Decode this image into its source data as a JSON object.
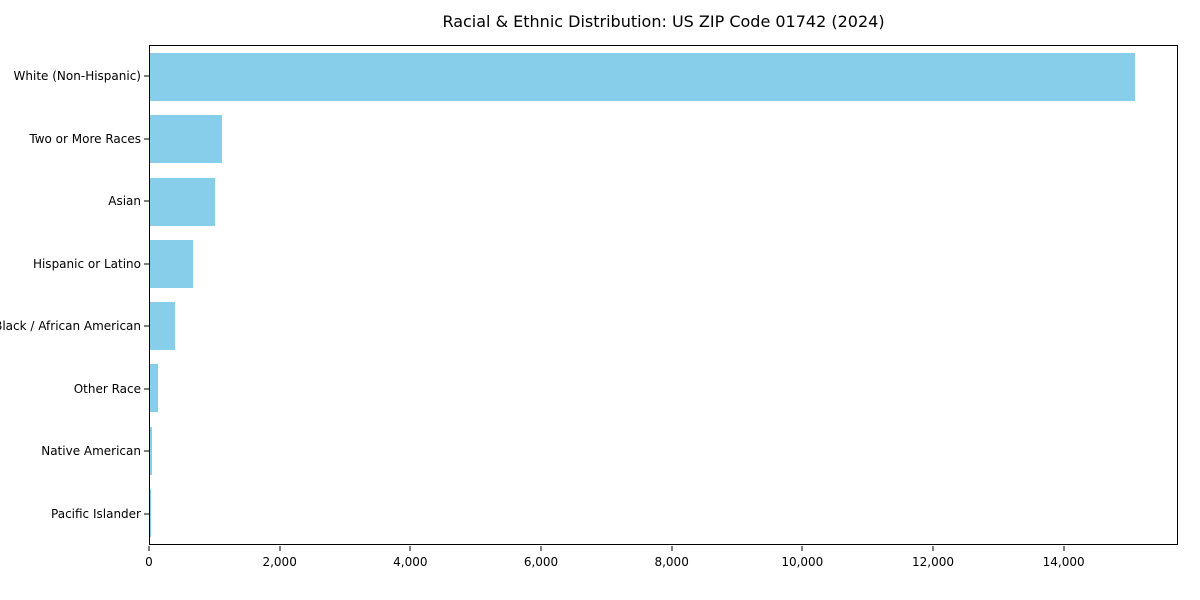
{
  "chart_data": {
    "type": "bar",
    "orientation": "horizontal",
    "title": "Racial & Ethnic Distribution: US ZIP Code 01742 (2024)",
    "categories": [
      "White (Non-Hispanic)",
      "Two or More Races",
      "Asian",
      "Hispanic or Latino",
      "Black / African American",
      "Other Race",
      "Native American",
      "Pacific Islander"
    ],
    "values": [
      15100,
      1100,
      1000,
      660,
      390,
      120,
      35,
      5
    ],
    "xlabel": "",
    "ylabel": "",
    "xlim": [
      0,
      15750
    ],
    "x_ticks": [
      0,
      2000,
      4000,
      6000,
      8000,
      10000,
      12000,
      14000
    ],
    "x_tick_labels": [
      "0",
      "2,000",
      "4,000",
      "6,000",
      "8,000",
      "10,000",
      "12,000",
      "14,000"
    ],
    "bar_color": "#87CEEB",
    "grid": false,
    "legend": false
  }
}
